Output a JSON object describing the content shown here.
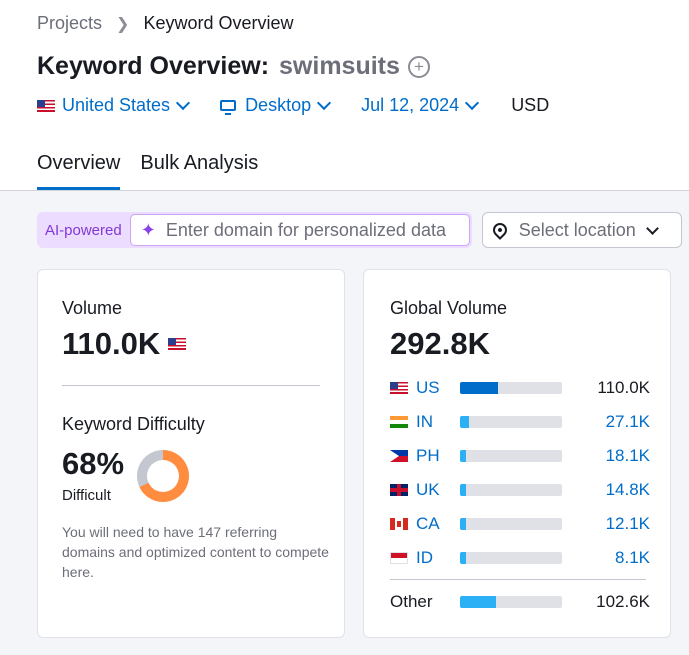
{
  "breadcrumb": {
    "root": "Projects",
    "current": "Keyword Overview"
  },
  "header": {
    "title": "Keyword Overview:",
    "keyword": "swimsuits",
    "add_symbol": "+"
  },
  "filters": {
    "country": "United States",
    "device": "Desktop",
    "date": "Jul 12, 2024",
    "currency": "USD"
  },
  "tabs": [
    {
      "label": "Overview",
      "active": true
    },
    {
      "label": "Bulk Analysis",
      "active": false
    }
  ],
  "ai": {
    "badge": "AI-powered",
    "placeholder": "Enter domain for personalized data"
  },
  "location": {
    "placeholder": "Select location"
  },
  "volume": {
    "label": "Volume",
    "value": "110.0K"
  },
  "difficulty": {
    "label": "Keyword Difficulty",
    "value": "68%",
    "percent": 68,
    "level": "Difficult",
    "description": "You will need to have 147 referring domains and optimized content to compete here."
  },
  "global_volume": {
    "label": "Global Volume",
    "value": "292.8K",
    "countries": [
      {
        "code": "US",
        "value": "110.0K",
        "share": 0.376,
        "bar_color": "#006dca",
        "linked": false
      },
      {
        "code": "IN",
        "value": "27.1K",
        "share": 0.093,
        "bar_color": "#2bb0f5",
        "linked": true
      },
      {
        "code": "PH",
        "value": "18.1K",
        "share": 0.062,
        "bar_color": "#2bb0f5",
        "linked": true
      },
      {
        "code": "UK",
        "value": "14.8K",
        "share": 0.051,
        "bar_color": "#2bb0f5",
        "linked": true
      },
      {
        "code": "CA",
        "value": "12.1K",
        "share": 0.041,
        "bar_color": "#2bb0f5",
        "linked": true
      },
      {
        "code": "ID",
        "value": "8.1K",
        "share": 0.028,
        "bar_color": "#2bb0f5",
        "linked": true
      }
    ],
    "other": {
      "label": "Other",
      "value": "102.6K",
      "share": 0.35,
      "bar_color": "#2bb0f5"
    }
  },
  "colors": {
    "accent": "#006dca",
    "difficulty": "#ff8c3f",
    "ai": "#8237d8"
  }
}
